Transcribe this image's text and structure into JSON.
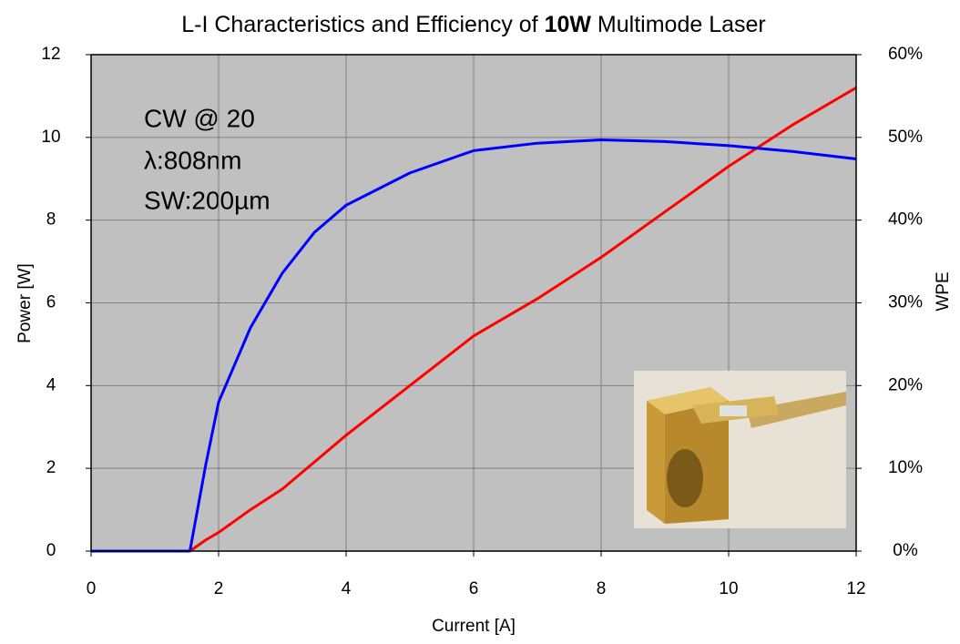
{
  "chart_data": {
    "type": "line",
    "title": [
      "L-I Characteristics and Efficiency of ",
      "10W",
      " Multimode Laser"
    ],
    "annotations": [
      "CW @ 20",
      "λ:808nm",
      "SW:200µm"
    ],
    "xlabel": "Current [A]",
    "ylabel": "Power [W]",
    "y2label": "WPE",
    "x": [
      0,
      1,
      1.55,
      1.8,
      2,
      2.5,
      3,
      3.5,
      4,
      5,
      6,
      7,
      8,
      9,
      10,
      11,
      12
    ],
    "series": [
      {
        "name": "Power",
        "color": "#ff0000",
        "values": [
          0,
          0,
          0,
          0.27,
          0.45,
          1.0,
          1.5,
          2.15,
          2.8,
          4.0,
          5.2,
          6.1,
          7.1,
          8.2,
          9.3,
          10.3,
          11.2
        ]
      },
      {
        "name": "WPE",
        "color": "#0000ff",
        "axis": "y2",
        "values": [
          0,
          0,
          0,
          10.5,
          18,
          27,
          33.6,
          38.5,
          41.8,
          45.7,
          48.4,
          49.3,
          49.7,
          49.5,
          49,
          48.3,
          47.4
        ]
      }
    ],
    "xlim": [
      0,
      12
    ],
    "xticks": [
      0,
      2,
      4,
      6,
      8,
      10,
      12
    ],
    "ylim": [
      0,
      12
    ],
    "yticks": [
      0,
      2,
      4,
      6,
      8,
      10,
      12
    ],
    "y2lim": [
      0,
      60
    ],
    "y2ticks": [
      {
        "value": 0,
        "label": "0%"
      },
      {
        "value": 10,
        "label": "10%"
      },
      {
        "value": 20,
        "label": "20%"
      },
      {
        "value": 30,
        "label": "30%"
      },
      {
        "value": 40,
        "label": "40%"
      },
      {
        "value": 50,
        "label": "50%"
      },
      {
        "value": 60,
        "label": "60%"
      }
    ],
    "grid": true
  }
}
